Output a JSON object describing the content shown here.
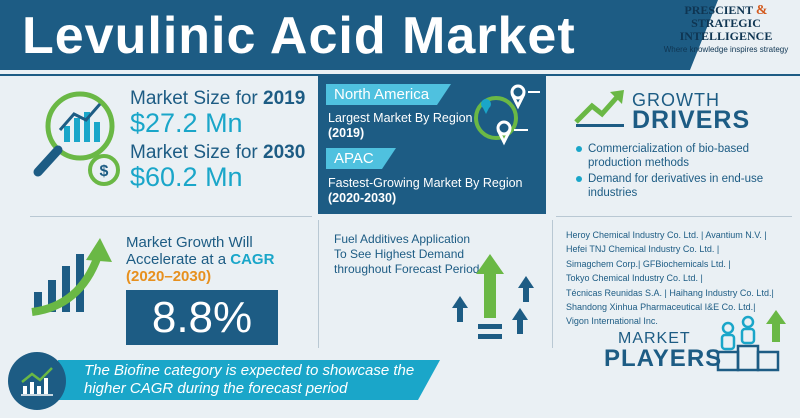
{
  "header": {
    "title": "Levulinic Acid Market",
    "brand_line1": "PRESCIENT",
    "brand_amp": "&",
    "brand_line1b": "STRATEGIC",
    "brand_line2": "INTELLIGENCE",
    "brand_tagline": "Where knowledge inspires strategy"
  },
  "market_size": {
    "label_2019": "Market Size for",
    "year_2019": "2019",
    "value_2019": "$27.2 Mn",
    "label_2030": "Market Size for",
    "year_2030": "2030",
    "value_2030": "$60.2 Mn"
  },
  "regions": {
    "largest_tag": "North America",
    "largest_text": "Largest Market By Region",
    "largest_year": "(2019)",
    "fastest_tag": "APAC",
    "fastest_text": "Fastest-Growing Market By Region",
    "fastest_year": "(2020-2030)"
  },
  "growth_drivers": {
    "heading_small": "GROWTH",
    "heading_big": "DRIVERS",
    "items": [
      "Commercialization of bio-based production methods",
      "Demand for derivatives in end-use industries"
    ]
  },
  "cagr": {
    "label_line1": "Market Growth Will",
    "label_line2a": "Accelerate at a",
    "label_hl": "CAGR",
    "label_years": "(2020–2030)",
    "value": "8.8%"
  },
  "application": {
    "text": "Fuel Additives Application To See Highest Demand throughout Forecast Period"
  },
  "players": {
    "lines": [
      "Heroy Chemical Industry Co. Ltd.  |  Avantium N.V.  |",
      "Hefei TNJ Chemical Industry Co. Ltd.  |",
      "Simagchem Corp.| GFBiochemicals Ltd.  |",
      "Tokyo Chemical Industry Co. Ltd.  |",
      "Técnicas Reunidas S.A.  |  Haihang Industry Co. Ltd.|",
      "Shandong Xinhua Pharmaceutical I&E Co. Ltd.|",
      "Vigon International Inc."
    ],
    "heading_small": "MARKET",
    "heading_big": "PLAYERS"
  },
  "banner": {
    "text": "The Biofine category is expected to showcase the higher CAGR during the forecast period"
  },
  "colors": {
    "navy": "#1d5c84",
    "cyan": "#1aa6c9",
    "green": "#6ab845",
    "orange": "#e7901e",
    "background": "#eaf0f4"
  },
  "icons": [
    "magnifier-chart-icon",
    "dollar-icon",
    "map-pin-icon",
    "growth-arrow-icon",
    "bar-chart-growth-icon",
    "up-arrows-icon",
    "people-podium-icon",
    "line-chart-icon"
  ]
}
